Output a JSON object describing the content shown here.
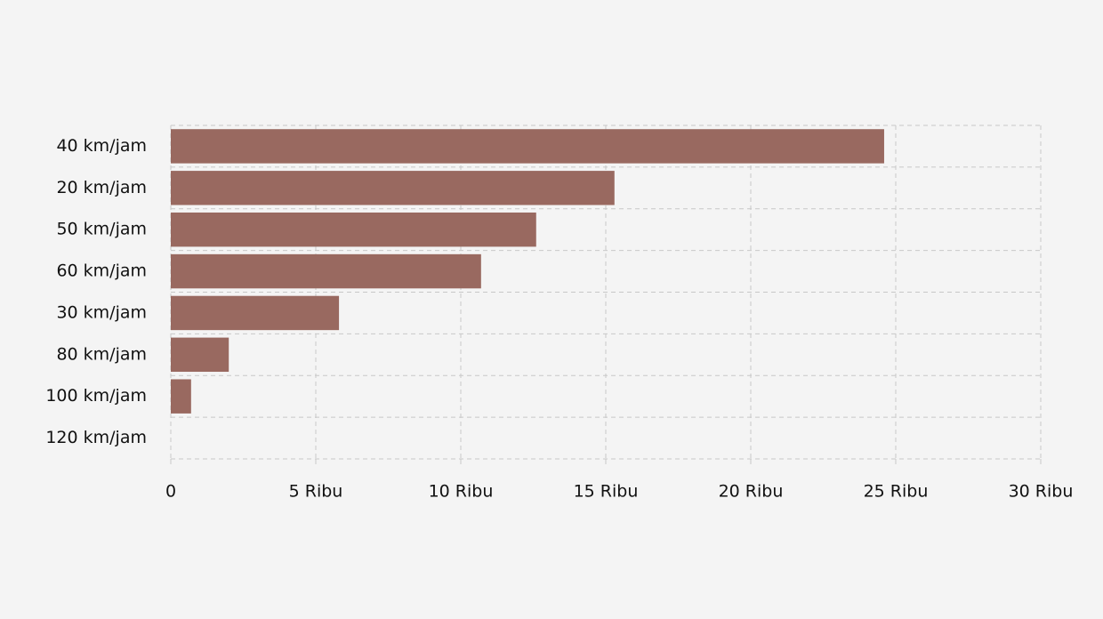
{
  "chart_data": {
    "type": "bar",
    "orientation": "horizontal",
    "categories": [
      "40 km/jam",
      "20 km/jam",
      "50 km/jam",
      "60 km/jam",
      "30 km/jam",
      "80 km/jam",
      "100 km/jam",
      "120 km/jam"
    ],
    "values": [
      24600,
      15300,
      12600,
      10700,
      5800,
      2000,
      700,
      0
    ],
    "color": "#996960",
    "xlim": [
      0,
      30000
    ],
    "xticks": [
      0,
      {
        "value": 5000,
        "label": "5 Ribu"
      },
      {
        "value": 10000,
        "label": "10 Ribu"
      },
      {
        "value": 15000,
        "label": "15 Ribu"
      },
      {
        "value": 20000,
        "label": "20 Ribu"
      },
      {
        "value": 25000,
        "label": "25 Ribu"
      },
      {
        "value": 30000,
        "label": "30 Ribu"
      }
    ],
    "grid": true
  }
}
